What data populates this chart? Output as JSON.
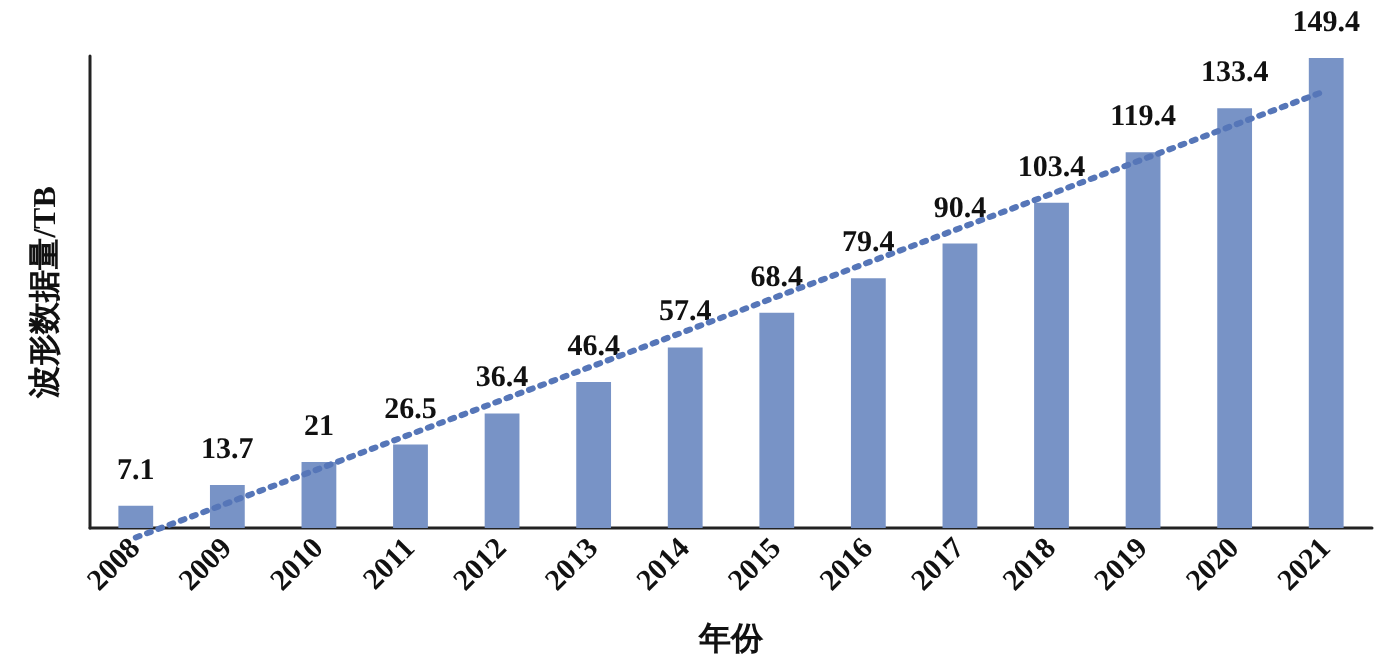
{
  "chart_data": {
    "type": "bar",
    "xlabel": "年份",
    "ylabel": "波形数据量/TB",
    "categories": [
      "2008",
      "2009",
      "2010",
      "2011",
      "2012",
      "2013",
      "2014",
      "2015",
      "2016",
      "2017",
      "2018",
      "2019",
      "2020",
      "2021"
    ],
    "series": [
      {
        "color": "#7893c6",
        "values": [
          7.1,
          13.7,
          21,
          26.5,
          36.4,
          46.4,
          57.4,
          68.4,
          79.4,
          90.4,
          103.4,
          119.4,
          133.4,
          149.4
        ],
        "value_labels": [
          "7.1",
          "13.7",
          "21",
          "26.5",
          "36.4",
          "46.4",
          "57.4",
          "68.4",
          "79.4",
          "90.4",
          "103.4",
          "119.4",
          "133.4",
          "149.4"
        ]
      },
      {
        "type": "line",
        "color": "#5676b8",
        "line_style": "dotted",
        "marker": "none",
        "values": [
          -3.0,
          7.9,
          18.8,
          29.8,
          40.7,
          51.6,
          62.5,
          73.5,
          84.4,
          95.3,
          106.2,
          117.2,
          128.1,
          139.0
        ]
      }
    ],
    "grid": false
  }
}
